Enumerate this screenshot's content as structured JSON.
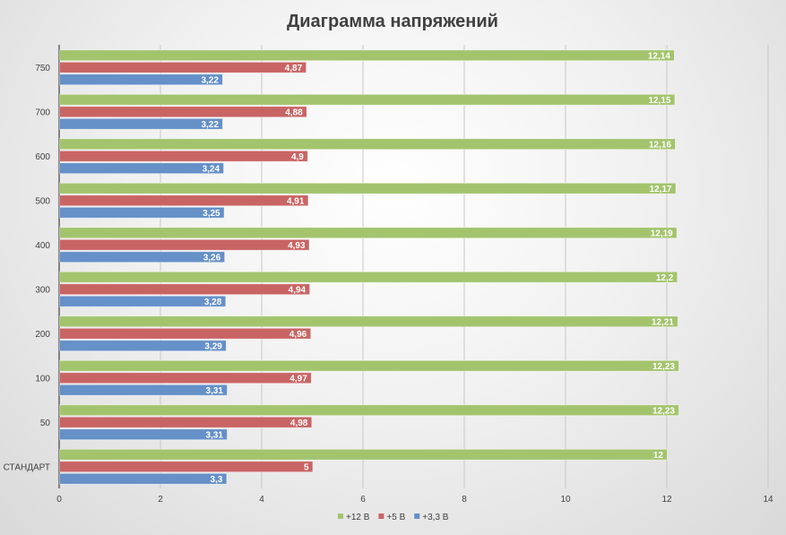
{
  "chart_data": {
    "type": "bar",
    "orientation": "horizontal",
    "title": "Диаграмма напряжений",
    "xlabel": "",
    "ylabel": "",
    "xlim": [
      0,
      14
    ],
    "x_ticks": [
      "0",
      "2",
      "4",
      "6",
      "8",
      "10",
      "12",
      "14"
    ],
    "grid": true,
    "legend_position": "bottom",
    "categories": [
      "СТАНДАРТ",
      "50",
      "100",
      "200",
      "300",
      "400",
      "500",
      "600",
      "700",
      "750"
    ],
    "series": [
      {
        "name": "+3,3 В",
        "color": "#6590c8",
        "values": [
          3.3,
          3.31,
          3.31,
          3.29,
          3.28,
          3.26,
          3.25,
          3.24,
          3.22,
          3.22
        ],
        "labels": [
          "3,3",
          "3,31",
          "3,31",
          "3,29",
          "3,28",
          "3,26",
          "3,25",
          "3,24",
          "3,22",
          "3,22"
        ]
      },
      {
        "name": "+5 В",
        "color": "#c96464",
        "values": [
          5,
          4.98,
          4.97,
          4.96,
          4.94,
          4.93,
          4.91,
          4.9,
          4.88,
          4.87
        ],
        "labels": [
          "5",
          "4,98",
          "4,97",
          "4,96",
          "4,94",
          "4,93",
          "4,91",
          "4,9",
          "4,88",
          "4,87"
        ]
      },
      {
        "name": "+12 В",
        "color": "#a3c46d",
        "values": [
          12,
          12.23,
          12.23,
          12.21,
          12.2,
          12.19,
          12.17,
          12.16,
          12.15,
          12.14
        ],
        "labels": [
          "12",
          "12,23",
          "12,23",
          "12,21",
          "12,2",
          "12,19",
          "12,17",
          "12,16",
          "12,15",
          "12,14"
        ]
      }
    ],
    "legend_order": [
      "+12 В",
      "+5 В",
      "+3,3 В"
    ]
  }
}
